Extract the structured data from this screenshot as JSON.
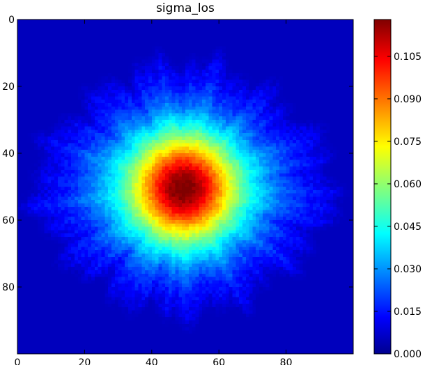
{
  "chart_data": {
    "type": "heatmap",
    "title": "sigma_los",
    "xlabel": "",
    "ylabel": "",
    "grid_size": [
      100,
      100
    ],
    "x_ticks": [
      "0",
      "20",
      "40",
      "60",
      "80"
    ],
    "x_tick_values": [
      0,
      20,
      40,
      60,
      80
    ],
    "y_ticks": [
      "0",
      "20",
      "40",
      "60",
      "80"
    ],
    "y_tick_values": [
      0,
      20,
      40,
      60,
      80
    ],
    "xlim": [
      0,
      100
    ],
    "ylim": [
      100,
      0
    ],
    "colormap": "jet",
    "colorbar": {
      "range": [
        0.0,
        0.118
      ],
      "ticks": [
        "0.000",
        "0.015",
        "0.030",
        "0.045",
        "0.060",
        "0.075",
        "0.090",
        "0.105"
      ],
      "tick_values": [
        0.0,
        0.015,
        0.03,
        0.045,
        0.06,
        0.075,
        0.09,
        0.105
      ],
      "placement": "right"
    },
    "field": {
      "center": [
        49,
        50
      ],
      "peak_value": 0.115,
      "core_radius": 7,
      "half_value_radius": 20,
      "edge_radius": 38,
      "background_value": 0.0,
      "features": "radial streaks extending outward, strongest horizontally toward left and right edges"
    },
    "grid": false
  }
}
